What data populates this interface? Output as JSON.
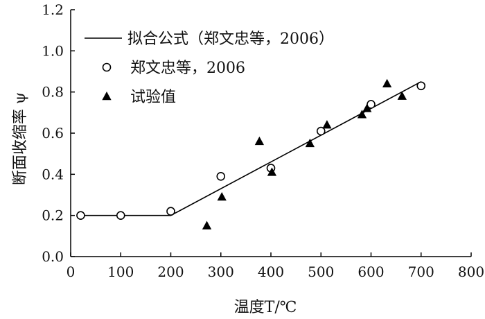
{
  "chart_data": {
    "type": "scatter",
    "xlabel": "温度T/℃",
    "ylabel": "断面收缩率 ψ",
    "xlim": [
      0,
      800
    ],
    "ylim": [
      0,
      1.2
    ],
    "xticks": [
      0,
      100,
      200,
      300,
      400,
      500,
      600,
      700,
      800
    ],
    "yticks": [
      0.0,
      0.2,
      0.4,
      0.6,
      0.8,
      1.0,
      1.2
    ],
    "xtick_labels": [
      "0",
      "100",
      "200",
      "300",
      "400",
      "500",
      "600",
      "700",
      "800"
    ],
    "ytick_labels": [
      "0.0",
      "0.2",
      "0.4",
      "0.6",
      "0.8",
      "1.0",
      "1.2"
    ],
    "grid": false,
    "legend_position": "top-left",
    "series": [
      {
        "name": "拟合公式（郑文忠等，2006）",
        "type": "line",
        "color": "#000000",
        "x": [
          18,
          200,
          700
        ],
        "y": [
          0.2,
          0.2,
          0.85
        ]
      },
      {
        "name": "郑文忠等，2006",
        "type": "scatter",
        "marker": "circle-open",
        "color": "#000000",
        "x": [
          20,
          100,
          200,
          300,
          400,
          500,
          600,
          700
        ],
        "y": [
          0.2,
          0.2,
          0.22,
          0.39,
          0.43,
          0.61,
          0.74,
          0.83
        ]
      },
      {
        "name": "试验值",
        "type": "scatter",
        "marker": "triangle-filled",
        "color": "#000000",
        "x": [
          272,
          302,
          377,
          402,
          478,
          512,
          582,
          592,
          632,
          662
        ],
        "y": [
          0.15,
          0.29,
          0.56,
          0.41,
          0.55,
          0.64,
          0.69,
          0.72,
          0.84,
          0.78
        ]
      }
    ]
  }
}
